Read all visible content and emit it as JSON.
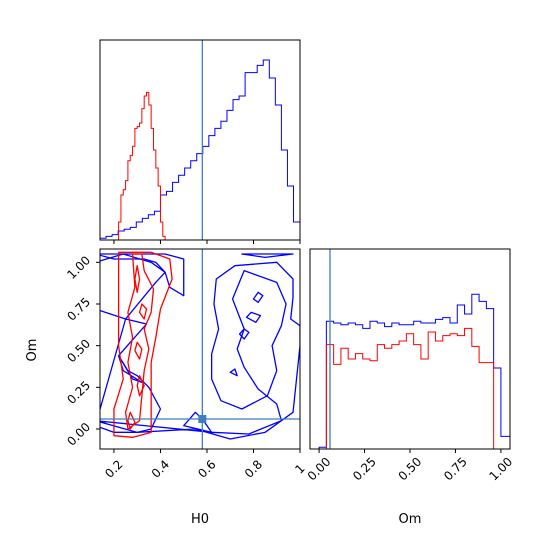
{
  "chart_data": {
    "type": "corner",
    "parameters": [
      "H0",
      "Om"
    ],
    "truth": {
      "H0": 0.58,
      "Om": 0.06,
      "line_color": "#3f7fbf"
    },
    "series": [
      {
        "color": "#0000ff"
      },
      {
        "color": "#ff0000"
      }
    ],
    "panels": [
      {
        "id": "hist-H0",
        "type": "histogram",
        "xlim": [
          0.14,
          1.0
        ],
        "ticks": [
          0.2,
          0.4,
          0.6,
          0.8,
          1.0
        ],
        "bins_blue": {
          "edges": [
            0.14,
            0.166,
            0.192,
            0.218,
            0.244,
            0.27,
            0.296,
            0.322,
            0.348,
            0.374,
            0.4,
            0.426,
            0.452,
            0.478,
            0.504,
            0.53,
            0.556,
            0.582,
            0.608,
            0.634,
            0.66,
            0.686,
            0.712,
            0.738,
            0.764,
            0.79,
            0.816,
            0.842,
            0.868,
            0.894,
            0.92,
            0.946,
            0.972,
            1.0
          ],
          "heights": [
            0.01,
            0.02,
            0.03,
            0.05,
            0.06,
            0.07,
            0.1,
            0.12,
            0.14,
            0.16,
            0.25,
            0.27,
            0.32,
            0.36,
            0.4,
            0.44,
            0.48,
            0.52,
            0.58,
            0.62,
            0.66,
            0.72,
            0.78,
            0.8,
            0.93,
            0.93,
            0.97,
            1.0,
            0.9,
            0.75,
            0.5,
            0.3,
            0.1
          ]
        },
        "bins_red": {
          "edges": [
            0.22,
            0.23,
            0.24,
            0.25,
            0.26,
            0.27,
            0.28,
            0.29,
            0.3,
            0.31,
            0.32,
            0.33,
            0.34,
            0.35,
            0.36,
            0.37,
            0.38,
            0.39,
            0.4,
            0.41,
            0.42
          ],
          "heights": [
            0.1,
            0.25,
            0.28,
            0.33,
            0.44,
            0.47,
            0.52,
            0.62,
            0.63,
            0.65,
            0.73,
            0.8,
            0.82,
            0.75,
            0.62,
            0.5,
            0.4,
            0.3,
            0.1,
            0.02
          ]
        }
      },
      {
        "id": "hist-Om",
        "type": "histogram",
        "xlim": [
          -0.05,
          1.05
        ],
        "ticks": [
          0.0,
          0.25,
          0.5,
          0.75,
          1.0
        ],
        "tick_labels": [
          "0.00",
          "0.25",
          "0.50",
          "0.75",
          "1.00"
        ],
        "xlabel": "Om",
        "bins_blue": {
          "edges": [
            -0.05,
            0.0,
            0.04,
            0.08,
            0.12,
            0.16,
            0.2,
            0.24,
            0.28,
            0.32,
            0.36,
            0.4,
            0.44,
            0.48,
            0.52,
            0.56,
            0.6,
            0.64,
            0.68,
            0.72,
            0.76,
            0.8,
            0.84,
            0.88,
            0.92,
            0.96,
            1.0,
            1.05
          ],
          "heights": [
            0.0,
            0.01,
            0.71,
            0.7,
            0.69,
            0.7,
            0.69,
            0.67,
            0.71,
            0.7,
            0.68,
            0.7,
            0.69,
            0.69,
            0.71,
            0.7,
            0.7,
            0.72,
            0.73,
            0.7,
            0.8,
            0.75,
            0.86,
            0.82,
            0.78,
            0.45,
            0.07
          ]
        },
        "bins_red": {
          "edges": [
            0.04,
            0.08,
            0.12,
            0.16,
            0.2,
            0.24,
            0.28,
            0.32,
            0.36,
            0.4,
            0.44,
            0.48,
            0.52,
            0.56,
            0.6,
            0.64,
            0.68,
            0.72,
            0.76,
            0.8,
            0.84,
            0.88,
            0.92,
            0.96,
            1.0
          ],
          "heights": [
            0.58,
            0.47,
            0.56,
            0.5,
            0.53,
            0.5,
            0.49,
            0.58,
            0.56,
            0.58,
            0.6,
            0.64,
            0.58,
            0.5,
            0.65,
            0.6,
            0.63,
            0.64,
            0.63,
            0.67,
            0.57,
            0.48,
            0.48,
            0.0
          ]
        }
      },
      {
        "id": "contour-H0-Om",
        "type": "contour",
        "xlim": [
          0.14,
          1.0
        ],
        "ylim": [
          -0.12,
          1.08
        ],
        "xticks": [
          0.2,
          0.4,
          0.6,
          0.8,
          1.0
        ],
        "yticks": [
          0.0,
          0.25,
          0.5,
          0.75,
          1.0
        ],
        "ytick_labels": [
          "0.00",
          "0.25",
          "0.50",
          "0.75",
          "1.00"
        ],
        "xlabel": "H0",
        "ylabel": "Om",
        "blue_contours": [
          [
            [
              0.12,
              1.05
            ],
            [
              0.2,
              1.02
            ],
            [
              0.33,
              1.02
            ],
            [
              0.38,
              1.0
            ],
            [
              0.42,
              0.94
            ],
            [
              0.44,
              0.85
            ],
            [
              0.5,
              0.8
            ],
            [
              0.5,
              1.02
            ],
            [
              0.42,
              1.05
            ]
          ],
          [
            [
              0.12,
              0.72
            ],
            [
              0.25,
              0.66
            ],
            [
              0.38,
              0.88
            ],
            [
              0.42,
              0.94
            ],
            [
              0.36,
              1.0
            ],
            [
              0.24,
              1.05
            ],
            [
              0.12,
              1.0
            ]
          ],
          [
            [
              0.25,
              0.66
            ],
            [
              0.34,
              0.63
            ],
            [
              0.22,
              0.44
            ],
            [
              0.26,
              0.35
            ],
            [
              0.3,
              0.32
            ],
            [
              0.35,
              0.25
            ],
            [
              0.4,
              0.12
            ],
            [
              0.36,
              0.0
            ],
            [
              0.3,
              -0.02
            ],
            [
              0.2,
              -0.02
            ],
            [
              0.12,
              0.02
            ]
          ],
          [
            [
              0.22,
              0.44
            ],
            [
              0.28,
              0.3
            ],
            [
              0.32,
              0.28
            ],
            [
              0.24,
              0.35
            ]
          ],
          [
            [
              0.12,
              0.05
            ],
            [
              0.3,
              -0.02
            ],
            [
              0.55,
              0.0
            ],
            [
              0.7,
              -0.06
            ],
            [
              0.85,
              -0.02
            ],
            [
              0.97,
              0.1
            ],
            [
              1.0,
              0.5
            ],
            [
              1.0,
              0.62
            ],
            [
              0.96,
              0.66
            ],
            [
              0.97,
              0.79
            ],
            [
              0.97,
              0.9
            ],
            [
              0.9,
              1.0
            ],
            [
              0.72,
              0.98
            ],
            [
              0.64,
              0.9
            ],
            [
              0.63,
              0.75
            ],
            [
              0.65,
              0.6
            ],
            [
              0.62,
              0.45
            ],
            [
              0.62,
              0.3
            ],
            [
              0.66,
              0.17
            ],
            [
              0.75,
              0.12
            ],
            [
              0.86,
              0.2
            ],
            [
              0.9,
              0.35
            ],
            [
              0.88,
              0.5
            ],
            [
              0.92,
              0.62
            ],
            [
              0.94,
              0.75
            ],
            [
              0.9,
              0.88
            ],
            [
              0.76,
              0.95
            ],
            [
              0.71,
              0.78
            ],
            [
              0.76,
              0.6
            ],
            [
              0.73,
              0.48
            ],
            [
              0.76,
              0.37
            ],
            [
              0.82,
              0.24
            ],
            [
              0.9,
              0.15
            ],
            [
              0.92,
              0.05
            ],
            [
              0.78,
              -0.03
            ],
            [
              0.62,
              -0.02
            ],
            [
              0.5,
              0.02
            ],
            [
              0.55,
              0.1
            ],
            [
              0.58,
              0.06
            ],
            [
              0.62,
              -0.02
            ]
          ],
          [
            [
              0.8,
              0.78
            ],
            [
              0.82,
              0.76
            ],
            [
              0.84,
              0.8
            ],
            [
              0.82,
              0.82
            ]
          ],
          [
            [
              0.77,
              0.67
            ],
            [
              0.81,
              0.64
            ],
            [
              0.83,
              0.68
            ],
            [
              0.79,
              0.7
            ]
          ],
          [
            [
              0.74,
              0.57
            ],
            [
              0.76,
              0.54
            ],
            [
              0.78,
              0.58
            ],
            [
              0.76,
              0.6
            ]
          ],
          [
            [
              0.7,
              0.34
            ],
            [
              0.73,
              0.32
            ],
            [
              0.72,
              0.36
            ]
          ],
          [
            [
              0.75,
              1.05
            ],
            [
              0.85,
              1.03
            ],
            [
              0.97,
              1.05
            ]
          ]
        ],
        "red_contours": [
          [
            [
              0.22,
              1.06
            ],
            [
              0.36,
              1.06
            ],
            [
              0.44,
              1.02
            ],
            [
              0.45,
              0.9
            ],
            [
              0.4,
              0.72
            ],
            [
              0.38,
              0.55
            ],
            [
              0.36,
              0.4
            ],
            [
              0.36,
              0.25
            ],
            [
              0.36,
              0.12
            ],
            [
              0.36,
              -0.02
            ],
            [
              0.28,
              -0.05
            ],
            [
              0.2,
              -0.04
            ],
            [
              0.2,
              0.12
            ],
            [
              0.24,
              0.3
            ],
            [
              0.22,
              0.5
            ],
            [
              0.22,
              0.7
            ],
            [
              0.22,
              0.9
            ]
          ],
          [
            [
              0.28,
              1.05
            ],
            [
              0.32,
              1.05
            ],
            [
              0.33,
              0.95
            ],
            [
              0.37,
              0.84
            ],
            [
              0.36,
              0.7
            ],
            [
              0.33,
              0.6
            ],
            [
              0.35,
              0.48
            ],
            [
              0.33,
              0.35
            ],
            [
              0.32,
              0.2
            ],
            [
              0.31,
              0.05
            ],
            [
              0.26,
              0.0
            ],
            [
              0.25,
              0.1
            ],
            [
              0.28,
              0.25
            ],
            [
              0.26,
              0.4
            ],
            [
              0.28,
              0.55
            ],
            [
              0.26,
              0.7
            ],
            [
              0.29,
              0.85
            ]
          ],
          [
            [
              0.3,
              0.98
            ],
            [
              0.31,
              0.9
            ],
            [
              0.3,
              0.82
            ],
            [
              0.29,
              0.9
            ]
          ],
          [
            [
              0.32,
              0.75
            ],
            [
              0.34,
              0.72
            ],
            [
              0.33,
              0.66
            ],
            [
              0.31,
              0.7
            ]
          ],
          [
            [
              0.3,
              0.52
            ],
            [
              0.32,
              0.48
            ],
            [
              0.31,
              0.42
            ],
            [
              0.29,
              0.47
            ]
          ],
          [
            [
              0.31,
              0.32
            ],
            [
              0.33,
              0.26
            ],
            [
              0.31,
              0.2
            ],
            [
              0.3,
              0.26
            ]
          ],
          [
            [
              0.27,
              0.1
            ],
            [
              0.29,
              0.04
            ],
            [
              0.27,
              0.0
            ],
            [
              0.26,
              0.05
            ]
          ]
        ]
      }
    ]
  }
}
